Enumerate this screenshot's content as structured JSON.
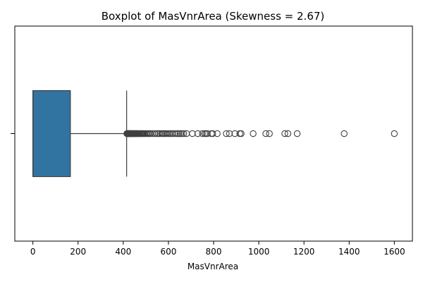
{
  "chart_data": {
    "type": "boxplot",
    "title": "Boxplot of MasVnrArea (Skewness = 2.67)",
    "xlabel": "MasVnrArea",
    "ylabel": "",
    "xlim": [
      -80,
      1680
    ],
    "xticks": [
      0,
      200,
      400,
      600,
      800,
      1000,
      1200,
      1400,
      1600
    ],
    "orientation": "horizontal",
    "grid": false,
    "box": {
      "min": 0,
      "q1": 0,
      "median": 0,
      "q3": 166,
      "whisker_low": 0,
      "whisker_high": 415
    },
    "outliers": [
      416,
      418,
      420,
      421,
      423,
      424,
      425,
      426,
      428,
      430,
      432,
      434,
      436,
      438,
      440,
      442,
      444,
      446,
      448,
      450,
      452,
      455,
      458,
      460,
      463,
      466,
      470,
      473,
      476,
      480,
      483,
      487,
      490,
      495,
      500,
      505,
      510,
      515,
      520,
      530,
      540,
      548,
      555,
      562,
      570,
      575,
      580,
      586,
      592,
      600,
      606,
      612,
      620,
      630,
      638,
      645,
      652,
      660,
      668,
      680,
      706,
      730,
      750,
      760,
      766,
      772,
      790,
      796,
      816,
      856,
      870,
      894,
      916,
      922,
      975,
      1031,
      1047,
      1115,
      1129,
      1170,
      1378,
      1600
    ],
    "colors": {
      "box_fill": "#3274a1",
      "line": "#3f3f3f",
      "axes": "#000000",
      "marker_edge": "#3f3f3f"
    }
  }
}
